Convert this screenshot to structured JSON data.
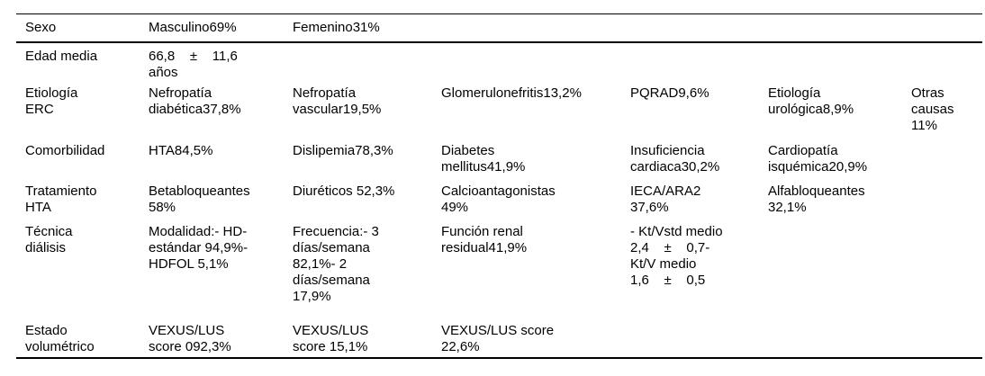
{
  "colors": {
    "background": "#ffffff",
    "text": "#000000",
    "rule": "#000000"
  },
  "table": {
    "type": "table",
    "language": "es",
    "rows": [
      {
        "cells": [
          "Sexo",
          "Masculino69%",
          "Femenino31%",
          "",
          "",
          "",
          ""
        ]
      },
      {
        "cells": [
          "Edad media",
          "66,8    ±    11,6\naños",
          "",
          "",
          "",
          "",
          ""
        ]
      },
      {
        "cells": [
          "Etiología\nERC",
          "Nefropatía\ndiabética37,8%",
          "Nefropatía\nvascular19,5%",
          "Glomerulonefritis13,2%",
          "PQRAD9,6%",
          "Etiología\nurológica8,9%",
          "Otras\ncausas\n11%"
        ]
      },
      {
        "cells": [
          "Comorbilidad",
          "HTA84,5%",
          "Dislipemia78,3%",
          "Diabetes\nmellitus41,9%",
          "Insuficiencia\ncardiaca30,2%",
          "Cardiopatía\nisquémica20,9%",
          ""
        ]
      },
      {
        "cells": [
          "Tratamiento\nHTA",
          "Betabloqueantes\n58%",
          "Diuréticos 52,3%",
          "Calcioantagonistas\n49%",
          "IECA/ARA2\n37,6%",
          "Alfabloqueantes\n32,1%",
          ""
        ]
      },
      {
        "cells": [
          "Técnica\ndiálisis",
          "Modalidad:- HD-\nestándar 94,9%-\nHDFOL 5,1%",
          "Frecuencia:- 3\ndías/semana\n82,1%- 2\ndías/semana\n17,9%",
          "Función renal\nresidual41,9%",
          "- Kt/Vstd medio\n2,4    ±    0,7-\nKt/V medio\n1,6    ±    0,5",
          "",
          ""
        ]
      },
      {
        "cells": [
          "Estado\nvolumétrico",
          "VEXUS/LUS\nscore 092,3%",
          "VEXUS/LUS\nscore 15,1%",
          "VEXUS/LUS score\n22,6%",
          "",
          "",
          ""
        ]
      }
    ]
  }
}
